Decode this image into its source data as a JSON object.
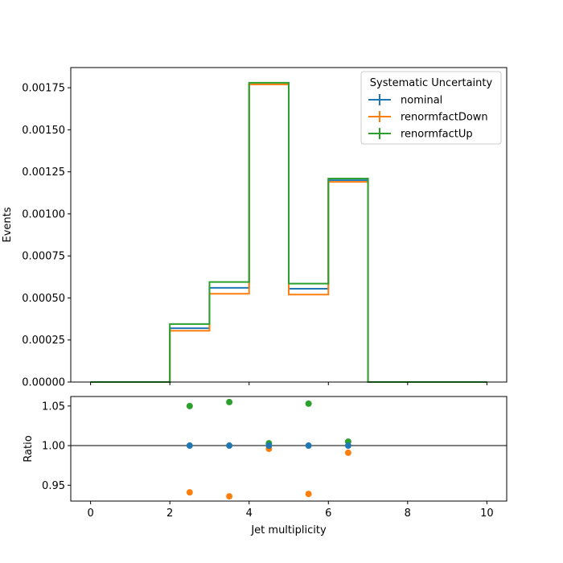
{
  "chart_data": [
    {
      "type": "step",
      "panel": "main",
      "ylabel": "Events",
      "xlim": [
        -0.5,
        10.5
      ],
      "ylim": [
        0,
        0.00187
      ],
      "yticks": [
        0,
        0.00025,
        0.0005,
        0.00075,
        0.001,
        0.00125,
        0.0015,
        0.00175
      ],
      "ytick_labels": [
        "0.00000",
        "0.00025",
        "0.00050",
        "0.00075",
        "0.00100",
        "0.00125",
        "0.00150",
        "0.00175"
      ],
      "bin_edges": [
        0,
        1,
        2,
        3,
        4,
        5,
        6,
        7,
        8,
        9,
        10
      ],
      "legend": {
        "title": "Systematic Uncertainty",
        "placement": "top-right"
      },
      "series": [
        {
          "name": "nominal",
          "color": "#1f77b4",
          "values": [
            0,
            0,
            0.00032,
            0.00056,
            0.00177,
            0.000555,
            0.0012,
            0,
            0,
            0
          ]
        },
        {
          "name": "renormfactDown",
          "color": "#ff7f0e",
          "values": [
            0,
            0,
            0.000305,
            0.000525,
            0.00177,
            0.00052,
            0.00119,
            0,
            0,
            0
          ]
        },
        {
          "name": "renormfactUp",
          "color": "#2ca02c",
          "values": [
            0,
            0,
            0.000345,
            0.000595,
            0.00178,
            0.000585,
            0.00121,
            0,
            0,
            0
          ]
        }
      ]
    },
    {
      "type": "scatter",
      "panel": "ratio",
      "xlabel": "Jet multiplicity",
      "ylabel": "Ratio",
      "xlim": [
        -0.5,
        10.5
      ],
      "ylim": [
        0.93,
        1.062
      ],
      "xticks": [
        0,
        2,
        4,
        6,
        8,
        10
      ],
      "xtick_labels": [
        "0",
        "2",
        "4",
        "6",
        "8",
        "10"
      ],
      "yticks": [
        0.95,
        1.0,
        1.05
      ],
      "ytick_labels": [
        "0.95",
        "1.00",
        "1.05"
      ],
      "reference_line": 1.0,
      "x": [
        2.5,
        3.5,
        4.5,
        5.5,
        6.5
      ],
      "series": [
        {
          "name": "nominal",
          "color": "#1f77b4",
          "values": [
            1.0,
            1.0,
            1.0,
            1.0,
            1.0
          ]
        },
        {
          "name": "renormfactDown",
          "color": "#ff7f0e",
          "values": [
            0.941,
            0.936,
            0.996,
            0.939,
            0.991
          ]
        },
        {
          "name": "renormfactUp",
          "color": "#2ca02c",
          "values": [
            1.05,
            1.055,
            1.003,
            1.053,
            1.005
          ]
        }
      ]
    }
  ]
}
